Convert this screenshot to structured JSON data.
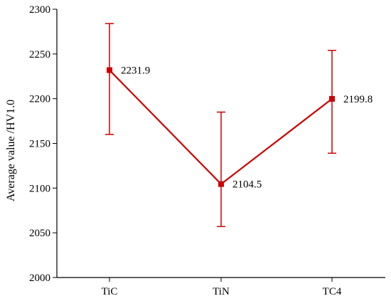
{
  "chart_data": {
    "type": "line",
    "title": "",
    "xlabel": "",
    "ylabel": "Average value /HV1.0",
    "categories": [
      "TiC",
      "TiN",
      "TC4"
    ],
    "series": [
      {
        "values": [
          2231.9,
          2104.5,
          2199.8
        ],
        "error_low": [
          2160,
          2057,
          2139
        ],
        "error_high": [
          2284,
          2185,
          2254
        ],
        "color": "#cc0000",
        "marker": "square"
      }
    ],
    "data_labels": [
      "2231.9",
      "2104.5",
      "2199.8"
    ],
    "ylim": [
      2000,
      2300
    ],
    "yticks": [
      2000,
      2050,
      2100,
      2150,
      2200,
      2250,
      2300
    ],
    "ytick_labels": [
      "2000",
      "2050",
      "2100",
      "2150",
      "2200",
      "2250",
      "2300"
    ],
    "grid": false,
    "legend": "none"
  }
}
